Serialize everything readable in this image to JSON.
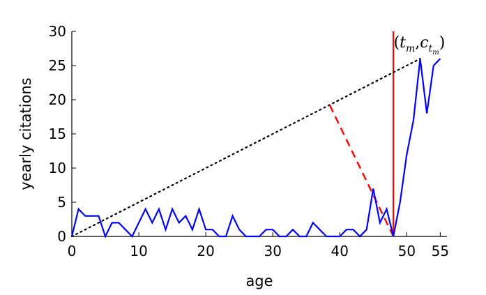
{
  "chart_data": {
    "type": "line",
    "xlabel": "age",
    "ylabel": "yearly citations",
    "xlim": [
      0,
      56
    ],
    "ylim": [
      0,
      30
    ],
    "xticks": [
      0,
      10,
      20,
      30,
      40,
      50,
      55
    ],
    "yticks": [
      0,
      5,
      10,
      15,
      20,
      25,
      30
    ],
    "grid": false,
    "series": [
      {
        "color": "#0000ff",
        "style": "solid",
        "x": [
          0,
          1,
          2,
          3,
          4,
          5,
          6,
          7,
          8,
          9,
          10,
          11,
          12,
          13,
          14,
          15,
          16,
          17,
          18,
          19,
          20,
          21,
          22,
          23,
          24,
          25,
          26,
          27,
          28,
          29,
          30,
          31,
          32,
          33,
          34,
          35,
          36,
          37,
          38,
          39,
          40,
          41,
          42,
          43,
          44,
          45,
          46,
          47,
          48,
          49,
          50,
          51,
          52,
          53,
          54,
          55
        ],
        "values": [
          0,
          4,
          3,
          3,
          3,
          0,
          2,
          2,
          1,
          0,
          2,
          4,
          2,
          4,
          1,
          4,
          2,
          3,
          1,
          4,
          1,
          1,
          0,
          0,
          3,
          1,
          0,
          0,
          0,
          1,
          1,
          0,
          0,
          1,
          0,
          0,
          2,
          1,
          0,
          0,
          0,
          1,
          1,
          0,
          1,
          7,
          2,
          4,
          0,
          5,
          12,
          17,
          26,
          18,
          25,
          26
        ]
      }
    ],
    "reference_lines": [
      {
        "kind": "vertical",
        "color": "#ff0000",
        "style": "solid",
        "x": 48
      },
      {
        "kind": "segment",
        "color": "#000000",
        "style": "dotted",
        "points": [
          [
            0,
            0
          ],
          [
            52,
            26
          ]
        ]
      },
      {
        "kind": "segment",
        "color": "#ff0000",
        "style": "dashed",
        "points": [
          [
            48,
            0
          ],
          [
            38.5,
            19.2
          ]
        ]
      }
    ],
    "annotation": {
      "text": "(t_m, c_{t_m})",
      "at": [
        52,
        26
      ],
      "base_symbols": [
        "(",
        "t",
        "m",
        ",",
        "c",
        "t",
        "m",
        ")"
      ]
    }
  }
}
